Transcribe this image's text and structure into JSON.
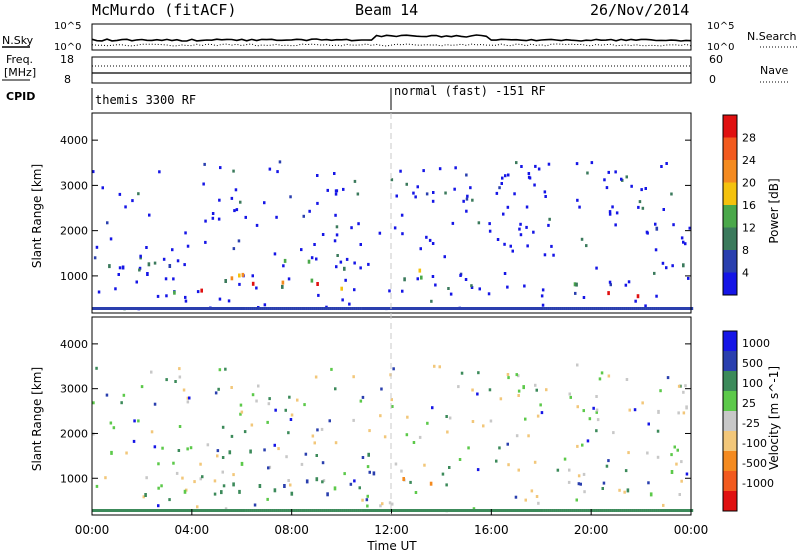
{
  "header": {
    "site": "McMurdo (fitACF)",
    "beam": "Beam 14",
    "date": "26/Nov/2014"
  },
  "noise_panel": {
    "left_label": "N.Sky",
    "left_ticks": [
      "10^5",
      "10^0"
    ],
    "right_label": "N.Search",
    "right_ticks": [
      "10^5",
      "10^0"
    ]
  },
  "freq_panel": {
    "left_label_1": "Freq.",
    "left_label_2": "[MHz]",
    "left_ticks": [
      "18",
      "8"
    ],
    "right_label": "Nave",
    "right_ticks": [
      "60",
      "0"
    ]
  },
  "cpid": {
    "label": "CPID",
    "modes": [
      {
        "name": "themis 3300 RF",
        "start": "00:00"
      },
      {
        "name": "normal (fast) -151 RF",
        "start": "12:00"
      }
    ]
  },
  "colors": {
    "power_scale": [
      "#1515e6",
      "#2a3fae",
      "#3b7a5c",
      "#4aa84a",
      "#f4c20d",
      "#f48a1f",
      "#f25a1e",
      "#e01010"
    ],
    "velocity_scale": [
      "#1515e6",
      "#2a3fae",
      "#3c8a5a",
      "#5cc94a",
      "#c8c8c8",
      "#f2c77a",
      "#f48a1f",
      "#f25a1e",
      "#e01010"
    ],
    "gridline": "#c8c8c8"
  },
  "chart_data": [
    {
      "type": "heatmap",
      "name": "power",
      "ylabel": "Slant Range [km]",
      "ylim": [
        180,
        4600
      ],
      "yticks": [
        "1000",
        "2000",
        "3000",
        "4000"
      ],
      "colorbar_label": "Power [dB]",
      "colorbar_ticks": [
        "4",
        "8",
        "12",
        "16",
        "20",
        "24",
        "28"
      ],
      "regions": [
        {
          "t0": 0.6,
          "t1": 3.8,
          "r0": 700,
          "r1": 1700,
          "v": 1
        },
        {
          "t0": 0.6,
          "t1": 2.5,
          "r0": 900,
          "r1": 1500,
          "v": 2
        },
        {
          "t0": 2.5,
          "t1": 10.0,
          "r0": 650,
          "r1": 1400,
          "v": 3
        },
        {
          "t0": 3.8,
          "t1": 7.5,
          "r0": 650,
          "r1": 1300,
          "v": 5
        },
        {
          "t0": 4.3,
          "t1": 7.2,
          "r0": 700,
          "r1": 1200,
          "v": 7
        },
        {
          "t0": 7.5,
          "t1": 10.0,
          "r0": 650,
          "r1": 1200,
          "v": 5
        },
        {
          "t0": 8.0,
          "t1": 9.6,
          "r0": 700,
          "r1": 1100,
          "v": 7
        },
        {
          "t0": 10.0,
          "t1": 11.5,
          "r0": 700,
          "r1": 1300,
          "v": 2
        },
        {
          "t0": 12.3,
          "t1": 14.2,
          "r0": 750,
          "r1": 1500,
          "v": 2
        },
        {
          "t0": 13.0,
          "t1": 14.0,
          "r0": 850,
          "r1": 1400,
          "v": 4
        },
        {
          "t0": 16.8,
          "t1": 17.6,
          "r0": 2000,
          "r1": 2500,
          "v": 1
        },
        {
          "t0": 19.2,
          "t1": 24.0,
          "r0": 450,
          "r1": 900,
          "v": 2
        },
        {
          "t0": 19.5,
          "t1": 24.0,
          "r0": 450,
          "r1": 800,
          "v": 7
        },
        {
          "t0": 22.0,
          "t1": 24.0,
          "r0": 800,
          "r1": 1300,
          "v": 2
        },
        {
          "t0": 22.5,
          "t1": 24.0,
          "r0": 1900,
          "r1": 2600,
          "v": 1
        }
      ]
    },
    {
      "type": "heatmap",
      "name": "velocity",
      "ylabel": "Slant Range [km]",
      "ylim": [
        180,
        4600
      ],
      "yticks": [
        "1000",
        "2000",
        "3000",
        "4000"
      ],
      "colorbar_label": "Velocity [m s^-1]",
      "colorbar_ticks": [
        "1000",
        "500",
        "100",
        "25",
        "-25",
        "-100",
        "-500",
        "-1000"
      ],
      "xlabel": "Time UT",
      "xticks": [
        "00:00",
        "04:00",
        "08:00",
        "12:00",
        "16:00",
        "20:00",
        "00:00"
      ],
      "xlim": [
        0,
        24
      ],
      "regions": [
        {
          "t0": 0.4,
          "t1": 11.5,
          "r0": 650,
          "r1": 1700,
          "v": 2
        },
        {
          "t0": 4.5,
          "t1": 10.5,
          "r0": 600,
          "r1": 1500,
          "v": 2
        },
        {
          "t0": 5.4,
          "t1": 5.9,
          "r0": 600,
          "r1": 1100,
          "v": 6
        },
        {
          "t0": 3.0,
          "t1": 3.4,
          "r0": 800,
          "r1": 1100,
          "v": 6
        },
        {
          "t0": 12.4,
          "t1": 14.2,
          "r0": 750,
          "r1": 1600,
          "v": 6
        },
        {
          "t0": 16.4,
          "t1": 17.4,
          "r0": 2400,
          "r1": 3100,
          "v": 4
        },
        {
          "t0": 19.6,
          "t1": 24.0,
          "r0": 500,
          "r1": 900,
          "v": 2
        },
        {
          "t0": 22.0,
          "t1": 24.0,
          "r0": 900,
          "r1": 1400,
          "v": 3
        },
        {
          "t0": 22.3,
          "t1": 24.0,
          "r0": 1900,
          "r1": 2700,
          "v": 4
        }
      ]
    }
  ]
}
